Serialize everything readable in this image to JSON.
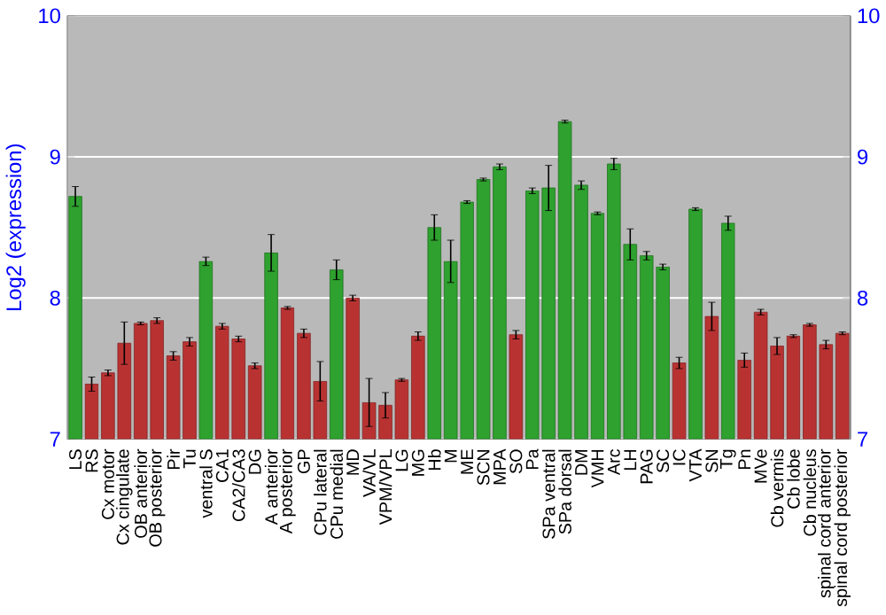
{
  "chart_data": {
    "type": "bar",
    "ylabel": "Log2 (expression)",
    "categories": [
      "LS",
      "RS",
      "Cx motor",
      "Cx cingulate",
      "OB anterior",
      "OB posterior",
      "Pir",
      "Tu",
      "ventral S",
      "CA1",
      "CA2/CA3",
      "DG",
      "A anterior",
      "A posterior",
      "GP",
      "CPu lateral",
      "CPu medial",
      "MD",
      "VA/VL",
      "VPM/VPL",
      "LG",
      "MG",
      "Hb",
      "M",
      "ME",
      "SCN",
      "MPA",
      "SO",
      "Pa",
      "SPa ventral",
      "SPa dorsal",
      "DM",
      "VMH",
      "Arc",
      "LH",
      "PAG",
      "SC",
      "IC",
      "VTA",
      "SN",
      "Tg",
      "Pn",
      "MVe",
      "Cb vermis",
      "Cb lobe",
      "Cb nucleus",
      "spinal cord anterior",
      "spinal cord posterior"
    ],
    "values": [
      8.72,
      7.39,
      7.47,
      7.68,
      7.82,
      7.84,
      7.59,
      7.69,
      8.26,
      7.8,
      7.71,
      7.52,
      8.32,
      7.93,
      7.75,
      7.41,
      8.2,
      8.0,
      7.26,
      7.24,
      7.42,
      7.73,
      8.5,
      8.26,
      8.68,
      8.84,
      8.93,
      7.74,
      8.76,
      8.78,
      9.25,
      8.8,
      8.6,
      8.95,
      8.38,
      8.3,
      8.22,
      7.54,
      8.63,
      7.87,
      8.53,
      7.56,
      7.9,
      7.66,
      7.73,
      7.81,
      7.67,
      7.75
    ],
    "errors": [
      0.07,
      0.05,
      0.02,
      0.15,
      0.01,
      0.02,
      0.03,
      0.03,
      0.03,
      0.02,
      0.02,
      0.02,
      0.13,
      0.01,
      0.03,
      0.14,
      0.07,
      0.02,
      0.17,
      0.09,
      0.01,
      0.03,
      0.09,
      0.15,
      0.01,
      0.01,
      0.02,
      0.03,
      0.02,
      0.16,
      0.01,
      0.03,
      0.01,
      0.04,
      0.11,
      0.03,
      0.02,
      0.04,
      0.01,
      0.1,
      0.05,
      0.05,
      0.02,
      0.06,
      0.01,
      0.01,
      0.03,
      0.01
    ],
    "colors": [
      "#2ea12e",
      "#b93232",
      "#b93232",
      "#b93232",
      "#b93232",
      "#b93232",
      "#b93232",
      "#b93232",
      "#2ea12e",
      "#b93232",
      "#b93232",
      "#b93232",
      "#2ea12e",
      "#b93232",
      "#b93232",
      "#b93232",
      "#2ea12e",
      "#b93232",
      "#b93232",
      "#b93232",
      "#b93232",
      "#b93232",
      "#2ea12e",
      "#2ea12e",
      "#2ea12e",
      "#2ea12e",
      "#2ea12e",
      "#b93232",
      "#2ea12e",
      "#2ea12e",
      "#2ea12e",
      "#2ea12e",
      "#2ea12e",
      "#2ea12e",
      "#2ea12e",
      "#2ea12e",
      "#2ea12e",
      "#b93232",
      "#2ea12e",
      "#b93232",
      "#2ea12e",
      "#b93232",
      "#b93232",
      "#b93232",
      "#b93232",
      "#b93232",
      "#b93232",
      "#b93232"
    ],
    "ylim": [
      7,
      10
    ],
    "yticks": [
      7,
      8,
      9,
      10
    ],
    "y2lim": [
      7,
      10
    ],
    "y2ticks": [
      7,
      8,
      9,
      10
    ],
    "grid": "y"
  }
}
